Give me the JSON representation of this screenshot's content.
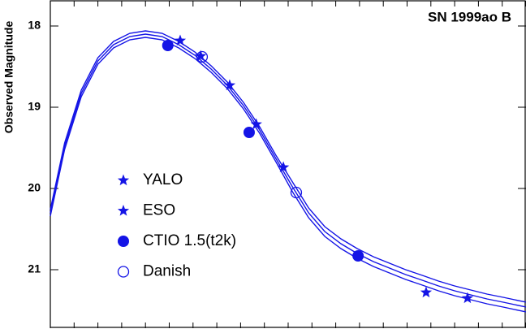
{
  "chart_data": {
    "type": "scatter",
    "title": "SN 1999ao  B",
    "y_label": "Observed Magnitude",
    "ylim": [
      21.73,
      17.68
    ],
    "yticks": [
      18,
      19,
      20,
      21
    ],
    "xlim": [
      0,
      100
    ],
    "xticks": [
      0,
      5,
      10,
      15,
      20,
      25,
      30,
      35,
      40,
      45,
      50,
      55,
      60,
      65,
      70,
      75,
      80,
      85,
      90,
      95,
      100
    ],
    "series": [
      {
        "name": "YALO",
        "color": "#1414e6",
        "marker": "star",
        "x": [
          27.3,
          37.7,
          43.3,
          49.0,
          79.0,
          87.7
        ],
        "values": [
          18.18,
          18.73,
          19.21,
          19.74,
          21.28,
          21.35
        ]
      },
      {
        "name": "ESO",
        "color": "#1414e6",
        "marker": "star",
        "x": [
          31.6
        ],
        "values": [
          18.37
        ]
      },
      {
        "name": "CTIO 1.5(t2k)",
        "color": "#1414e6",
        "marker": "circle",
        "x": [
          24.7,
          41.8,
          64.7
        ],
        "values": [
          18.24,
          19.31,
          20.83
        ]
      },
      {
        "name": "Danish",
        "color": "#1414e6",
        "marker": "open-circle",
        "x": [
          31.9,
          51.7
        ],
        "values": [
          18.38,
          20.05
        ]
      },
      {
        "type": "line",
        "color": "#1414e6",
        "x": [
          0,
          3,
          6.5,
          10,
          13.3,
          16.7,
          20,
          23.5,
          27,
          30.4,
          33.8,
          37.2,
          40.6,
          44,
          47.4,
          50.9,
          54.3,
          57.7,
          61.1,
          64.5,
          67.9,
          71.3,
          74.7,
          78.2,
          81.6,
          85,
          88.4,
          91.8,
          95.2,
          100
        ],
        "values": [
          20.3,
          19.48,
          18.83,
          18.43,
          18.23,
          18.13,
          18.1,
          18.13,
          18.23,
          18.36,
          18.53,
          18.73,
          18.98,
          19.28,
          19.63,
          19.98,
          20.3,
          20.53,
          20.68,
          20.8,
          20.9,
          20.98,
          21.06,
          21.13,
          21.2,
          21.26,
          21.31,
          21.36,
          21.4,
          21.46
        ]
      },
      {
        "type": "line",
        "color": "#1414e6",
        "x": [
          0,
          3,
          6.5,
          10,
          13.3,
          16.7,
          20,
          23.5,
          27,
          30.4,
          33.8,
          37.2,
          40.6,
          44,
          47.4,
          50.9,
          54.3,
          57.7,
          61.1,
          64.5,
          67.9,
          71.3,
          74.7,
          78.2,
          81.6,
          85,
          88.4,
          91.8,
          95.2,
          100
        ],
        "values": [
          20.26,
          19.44,
          18.79,
          18.39,
          18.19,
          18.09,
          18.06,
          18.09,
          18.19,
          18.32,
          18.49,
          18.69,
          18.94,
          19.24,
          19.59,
          19.92,
          20.24,
          20.47,
          20.62,
          20.74,
          20.84,
          20.92,
          21.0,
          21.07,
          21.14,
          21.2,
          21.25,
          21.3,
          21.34,
          21.4
        ]
      },
      {
        "type": "line",
        "color": "#1414e6",
        "x": [
          0,
          3,
          6.5,
          10,
          13.3,
          16.7,
          20,
          23.5,
          27,
          30.4,
          33.8,
          37.2,
          40.6,
          44,
          47.4,
          50.9,
          54.3,
          57.7,
          61.1,
          64.5,
          67.9,
          71.3,
          74.7,
          78.2,
          81.6,
          85,
          88.4,
          91.8,
          95.2,
          100
        ],
        "values": [
          20.34,
          19.52,
          18.87,
          18.47,
          18.27,
          18.17,
          18.14,
          18.17,
          18.27,
          18.4,
          18.57,
          18.77,
          19.02,
          19.32,
          19.67,
          20.04,
          20.36,
          20.59,
          20.74,
          20.86,
          20.96,
          21.04,
          21.12,
          21.19,
          21.26,
          21.32,
          21.37,
          21.42,
          21.46,
          21.52
        ]
      }
    ]
  }
}
